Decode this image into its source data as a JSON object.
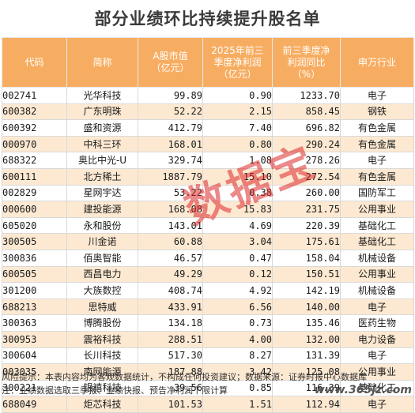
{
  "title": "部分业绩环比持续提升股名单",
  "chart_data": {
    "type": "table",
    "columns": [
      "代码",
      "简称",
      "A股市值\n（亿元）",
      "2025年前三\n季度净利润\n（亿元）",
      "前三季度净\n利润同比\n（%）",
      "申万行业"
    ],
    "rows": [
      [
        "002741",
        "光华科技",
        "99.89",
        "0.90",
        "1233.70",
        "电子"
      ],
      [
        "600382",
        "广东明珠",
        "52.22",
        "2.15",
        "858.45",
        "钢铁"
      ],
      [
        "600392",
        "盛和资源",
        "412.79",
        "7.40",
        "696.82",
        "有色金属"
      ],
      [
        "000970",
        "中科三环",
        "168.01",
        "0.80",
        "290.24",
        "有色金属"
      ],
      [
        "688322",
        "奥比中光-U",
        "329.74",
        "1.08",
        "278.26",
        "电子"
      ],
      [
        "600111",
        "北方稀土",
        "1887.79",
        "15.10",
        "272.54",
        "有色金属"
      ],
      [
        "002829",
        "星网宇达",
        "53.22",
        "0.38",
        "260.00",
        "国防军工"
      ],
      [
        "000600",
        "建投能源",
        "168.08",
        "15.83",
        "231.75",
        "公用事业"
      ],
      [
        "605020",
        "永和股份",
        "143.01",
        "4.69",
        "220.39",
        "基础化工"
      ],
      [
        "300505",
        "川金诺",
        "60.88",
        "3.04",
        "175.61",
        "基础化工"
      ],
      [
        "300836",
        "佰奥智能",
        "46.57",
        "0.47",
        "158.04",
        "机械设备"
      ],
      [
        "600505",
        "西昌电力",
        "49.29",
        "0.12",
        "150.51",
        "公用事业"
      ],
      [
        "301200",
        "大族数控",
        "408.74",
        "4.92",
        "142.19",
        "机械设备"
      ],
      [
        "688213",
        "思特威",
        "433.91",
        "6.56",
        "140.00",
        "电子"
      ],
      [
        "300363",
        "博腾股份",
        "134.18",
        "0.73",
        "135.46",
        "医药生物"
      ],
      [
        "300953",
        "震裕科技",
        "288.51",
        "4.00",
        "132.00",
        "电力设备"
      ],
      [
        "300604",
        "长川科技",
        "517.30",
        "8.27",
        "131.39",
        "电子"
      ],
      [
        "003035",
        "南网能源",
        "187.88",
        "3.42",
        "125.08",
        "公用事业"
      ],
      [
        "300221",
        "银禧科技",
        "39.56",
        "0.85",
        "116.39",
        "基础化工"
      ],
      [
        "688049",
        "炬芯科技",
        "101.53",
        "1.51",
        "112.94",
        "电子"
      ]
    ]
  },
  "watermark": "数据宝",
  "footer": {
    "line1": "风险提示：本表内容均为客观数据统计，不构成任何投资建议；数据来源：证券时报中心数据库",
    "line2": "注：业绩数据选取三季报、业绩快报、预告净利润下限计算"
  },
  "site_mark": "www.365jz.com"
}
